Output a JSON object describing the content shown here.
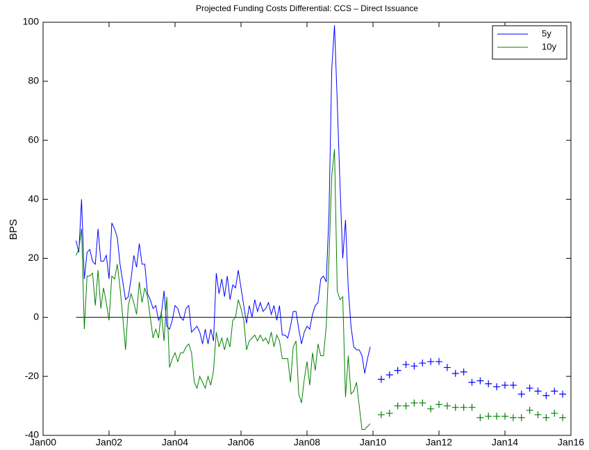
{
  "chart_data": {
    "type": "line",
    "title": "Projected Funding Costs Differential: CCS – Direct Issuance",
    "y_label": "BPS",
    "xlim": [
      0,
      192
    ],
    "xticks": [
      {
        "value": 0,
        "label": "Jan00"
      },
      {
        "value": 24,
        "label": "Jan02"
      },
      {
        "value": 48,
        "label": "Jan04"
      },
      {
        "value": 72,
        "label": "Jan06"
      },
      {
        "value": 96,
        "label": "Jan08"
      },
      {
        "value": 120,
        "label": "Jan10"
      },
      {
        "value": 144,
        "label": "Jan12"
      },
      {
        "value": 168,
        "label": "Jan14"
      },
      {
        "value": 192,
        "label": "Jan16"
      }
    ],
    "ylim": [
      -40,
      100
    ],
    "yticks": [
      -40,
      -20,
      0,
      20,
      40,
      60,
      80,
      100
    ],
    "grid": false,
    "legend": "top-right",
    "series": [
      {
        "name": "5y",
        "color": "#0000ff",
        "x": [
          12,
          13,
          14,
          15,
          16,
          17,
          18,
          19,
          20,
          21,
          22,
          23,
          24,
          25,
          26,
          27,
          28,
          29,
          30,
          31,
          32,
          33,
          34,
          35,
          36,
          37,
          38,
          39,
          40,
          41,
          42,
          43,
          44,
          45,
          46,
          47,
          48,
          49,
          50,
          51,
          52,
          53,
          54,
          55,
          56,
          57,
          58,
          59,
          60,
          61,
          62,
          63,
          64,
          65,
          66,
          67,
          68,
          69,
          70,
          71,
          72,
          73,
          74,
          75,
          76,
          77,
          78,
          79,
          80,
          81,
          82,
          83,
          84,
          85,
          86,
          87,
          88,
          89,
          90,
          91,
          92,
          93,
          94,
          95,
          96,
          97,
          98,
          99,
          100,
          101,
          102,
          103,
          104,
          105,
          106,
          107,
          108,
          109,
          110,
          111,
          112,
          113,
          114,
          115,
          116,
          117,
          118,
          119
        ],
        "values": [
          26,
          22,
          40,
          13,
          22,
          23,
          19,
          18,
          30,
          19,
          19,
          21,
          13,
          32,
          30,
          27,
          18,
          12,
          6,
          7,
          13,
          21,
          17,
          25,
          18,
          18,
          8,
          6,
          3,
          4,
          -1,
          1,
          9,
          -3,
          -4,
          -1,
          4,
          3,
          0,
          -1,
          3,
          4,
          -5,
          -4,
          -3,
          -5,
          -9,
          -4,
          -9,
          -4,
          -8,
          15,
          8,
          13,
          7,
          14,
          6,
          11,
          10,
          16,
          10,
          4,
          -2,
          4,
          0,
          6,
          2,
          5,
          2,
          3,
          5,
          1,
          4,
          -1,
          4,
          -6,
          -6,
          -7,
          -3,
          2,
          2,
          -4,
          -9,
          -5,
          -3,
          -4,
          1,
          4,
          5,
          13,
          14,
          12,
          35,
          84,
          99,
          73,
          45,
          20,
          33,
          10,
          -3,
          -10,
          -11,
          -11,
          -13,
          -19,
          -14,
          -10
        ]
      },
      {
        "name": "10y",
        "color": "#008000",
        "x": [
          12,
          13,
          14,
          15,
          16,
          17,
          18,
          19,
          20,
          21,
          22,
          23,
          24,
          25,
          26,
          27,
          28,
          29,
          30,
          31,
          32,
          33,
          34,
          35,
          36,
          37,
          38,
          39,
          40,
          41,
          42,
          43,
          44,
          45,
          46,
          47,
          48,
          49,
          50,
          51,
          52,
          53,
          54,
          55,
          56,
          57,
          58,
          59,
          60,
          61,
          62,
          63,
          64,
          65,
          66,
          67,
          68,
          69,
          70,
          71,
          72,
          73,
          74,
          75,
          76,
          77,
          78,
          79,
          80,
          81,
          82,
          83,
          84,
          85,
          86,
          87,
          88,
          89,
          90,
          91,
          92,
          93,
          94,
          95,
          96,
          97,
          98,
          99,
          100,
          101,
          102,
          103,
          104,
          105,
          106,
          107,
          108,
          109,
          110,
          111,
          112,
          113,
          114,
          115,
          116,
          117,
          118,
          119
        ],
        "values": [
          21,
          23,
          30,
          -4,
          14,
          14,
          15,
          4,
          16,
          3,
          10,
          5,
          -1,
          14,
          13,
          18,
          10,
          0,
          -11,
          4,
          8,
          5,
          1,
          12,
          5,
          10,
          7,
          0,
          -7,
          -4,
          -7,
          2,
          -8,
          7,
          -17,
          -14,
          -12,
          -15,
          -12,
          -12,
          -10,
          -9,
          -12,
          -22,
          -24,
          -20,
          -22,
          -24,
          -20,
          -23,
          -18,
          -5,
          -10,
          -7,
          -11,
          -7,
          -10,
          -1,
          0,
          6,
          3,
          -1,
          -11,
          -8,
          -7,
          -6,
          -8,
          -6,
          -8,
          -7,
          -9,
          -5,
          -10,
          -6,
          -8,
          -14,
          -14,
          -14,
          -22,
          -10,
          -8,
          -26,
          -29,
          -21,
          -15,
          -23,
          -12,
          -18,
          -9,
          -13,
          -13,
          -3,
          20,
          48,
          57,
          9,
          6,
          7,
          -27,
          -13,
          -26,
          -25,
          -22,
          -30,
          -38,
          -38,
          -37,
          -36
        ]
      },
      {
        "color": "#0000ff",
        "marker": "+",
        "x": [
          123,
          126,
          129,
          132,
          135,
          138,
          141,
          144,
          147,
          150,
          153,
          156,
          159,
          162,
          165,
          168,
          171,
          174,
          177,
          180,
          183,
          186,
          189
        ],
        "values": [
          -21,
          -19.5,
          -18,
          -16,
          -16.5,
          -15.5,
          -15,
          -15,
          -17,
          -19,
          -18.5,
          -22,
          -21.5,
          -22.5,
          -23.5,
          -23,
          -23,
          -26,
          -24,
          -25,
          -26.5,
          -25,
          -26
        ]
      },
      {
        "color": "#008000",
        "marker": "+",
        "x": [
          123,
          126,
          129,
          132,
          135,
          138,
          141,
          144,
          147,
          150,
          153,
          156,
          159,
          162,
          165,
          168,
          171,
          174,
          177,
          180,
          183,
          186,
          189
        ],
        "values": [
          -33,
          -32.5,
          -30,
          -30,
          -29,
          -29,
          -31,
          -29.5,
          -30,
          -30.5,
          -30.5,
          -30.5,
          -34,
          -33.5,
          -33.5,
          -33.5,
          -34,
          -34,
          -31.5,
          -33,
          -34,
          -32.5,
          -34
        ]
      }
    ]
  }
}
